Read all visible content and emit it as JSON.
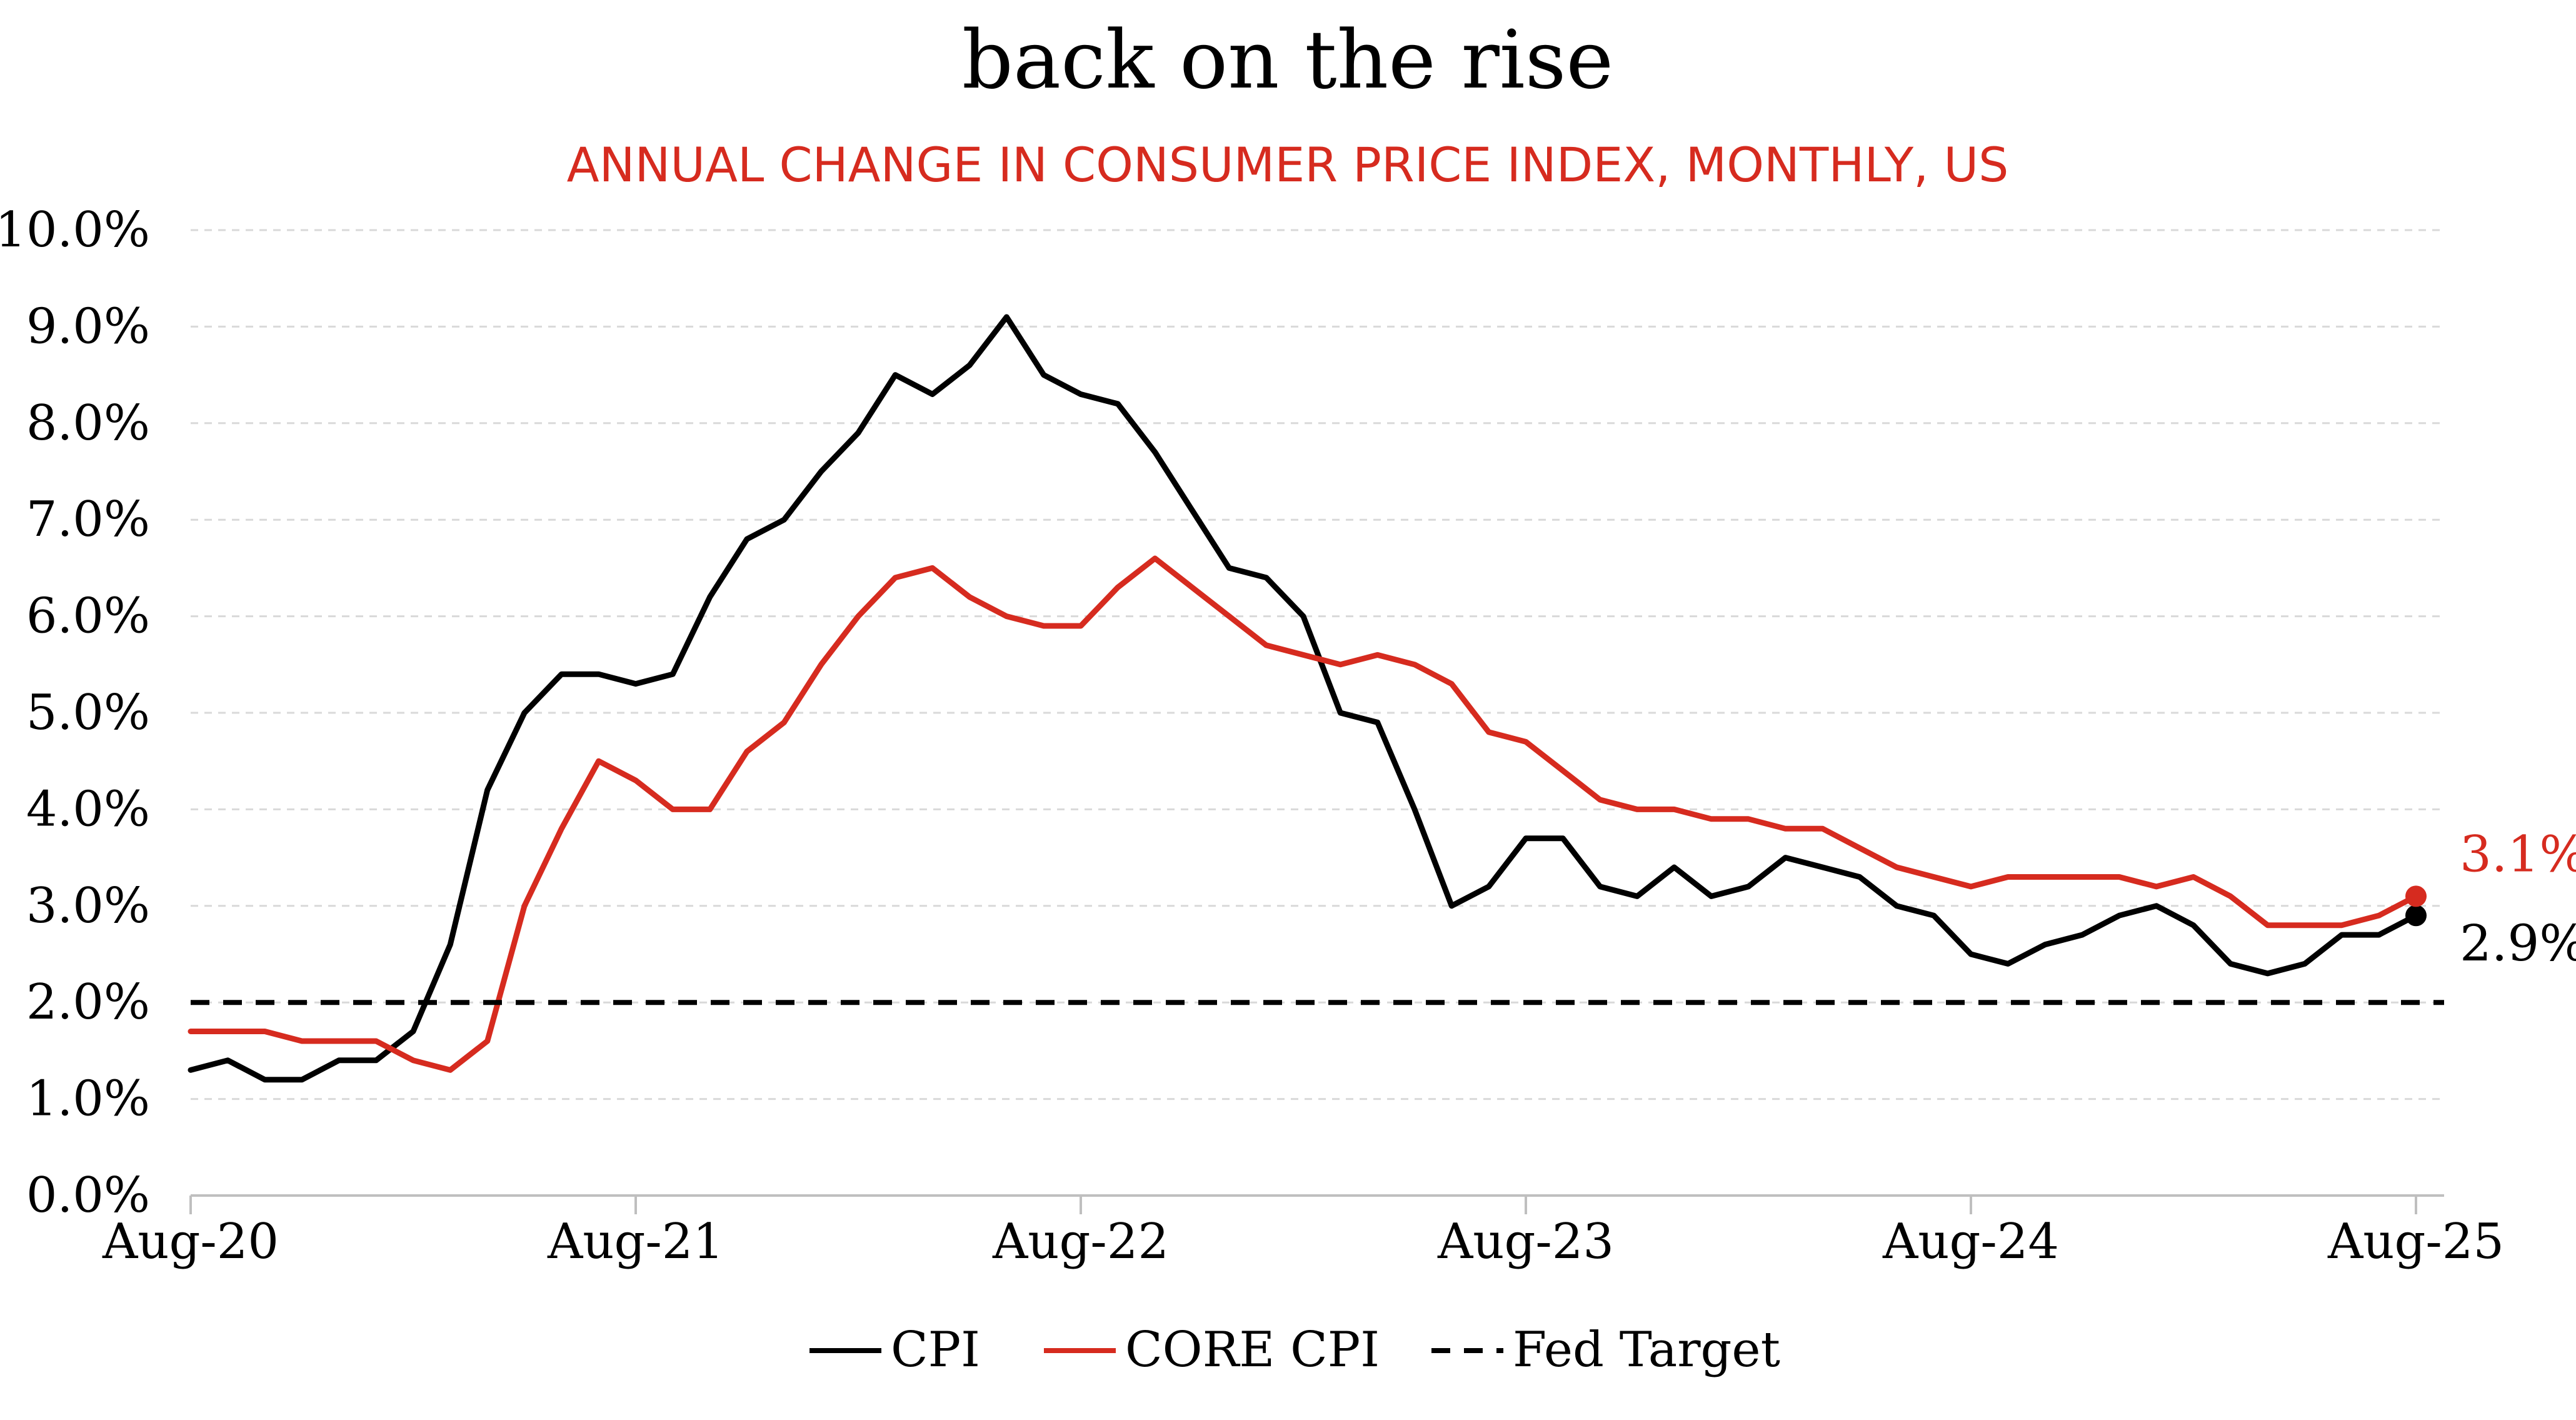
{
  "chart_data": {
    "type": "line",
    "title": "back on the rise",
    "subtitle": "ANNUAL CHANGE IN CONSUMER PRICE INDEX, MONTHLY, US",
    "x_tick_labels": [
      "Aug-20",
      "Aug-21",
      "Aug-22",
      "Aug-23",
      "Aug-24",
      "Aug-25"
    ],
    "y_tick_labels": [
      "0.0%",
      "1.0%",
      "2.0%",
      "3.0%",
      "4.0%",
      "5.0%",
      "6.0%",
      "7.0%",
      "8.0%",
      "9.0%",
      "10.0%"
    ],
    "ylim": [
      0,
      10
    ],
    "grid": true,
    "legend_position": "bottom",
    "x_start": "Aug-20",
    "series": [
      {
        "name": "CPI",
        "color": "#000000",
        "style": "solid",
        "end_label": "2.9%",
        "values": [
          1.3,
          1.4,
          1.2,
          1.2,
          1.4,
          1.4,
          1.7,
          2.6,
          4.2,
          5.0,
          5.4,
          5.4,
          5.3,
          5.4,
          6.2,
          6.8,
          7.0,
          7.5,
          7.9,
          8.5,
          8.3,
          8.6,
          9.1,
          8.5,
          8.3,
          8.2,
          7.7,
          7.1,
          6.5,
          6.4,
          6.0,
          5.0,
          4.9,
          4.0,
          3.0,
          3.2,
          3.7,
          3.7,
          3.2,
          3.1,
          3.4,
          3.1,
          3.2,
          3.5,
          3.4,
          3.3,
          3.0,
          2.9,
          2.5,
          2.4,
          2.6,
          2.7,
          2.9,
          3.0,
          2.8,
          2.4,
          2.3,
          2.4,
          2.7,
          2.7,
          2.9
        ]
      },
      {
        "name": "CORE CPI",
        "color": "#d62b1f",
        "style": "solid",
        "end_label": "3.1%",
        "values": [
          1.7,
          1.7,
          1.7,
          1.6,
          1.6,
          1.6,
          1.4,
          1.3,
          1.6,
          3.0,
          3.8,
          4.5,
          4.3,
          4.0,
          4.0,
          4.6,
          4.9,
          5.5,
          6.0,
          6.4,
          6.5,
          6.2,
          6.0,
          5.9,
          5.9,
          6.3,
          6.6,
          6.3,
          6.0,
          5.7,
          5.6,
          5.5,
          5.6,
          5.5,
          5.3,
          4.8,
          4.7,
          4.4,
          4.1,
          4.0,
          4.0,
          3.9,
          3.9,
          3.8,
          3.8,
          3.6,
          3.4,
          3.3,
          3.2,
          3.3,
          3.3,
          3.3,
          3.3,
          3.2,
          3.3,
          3.1,
          2.8,
          2.8,
          2.8,
          2.9,
          3.1
        ]
      },
      {
        "name": "Fed Target",
        "color": "#000000",
        "style": "dashed",
        "values": [
          2.0,
          2.0
        ]
      }
    ]
  }
}
